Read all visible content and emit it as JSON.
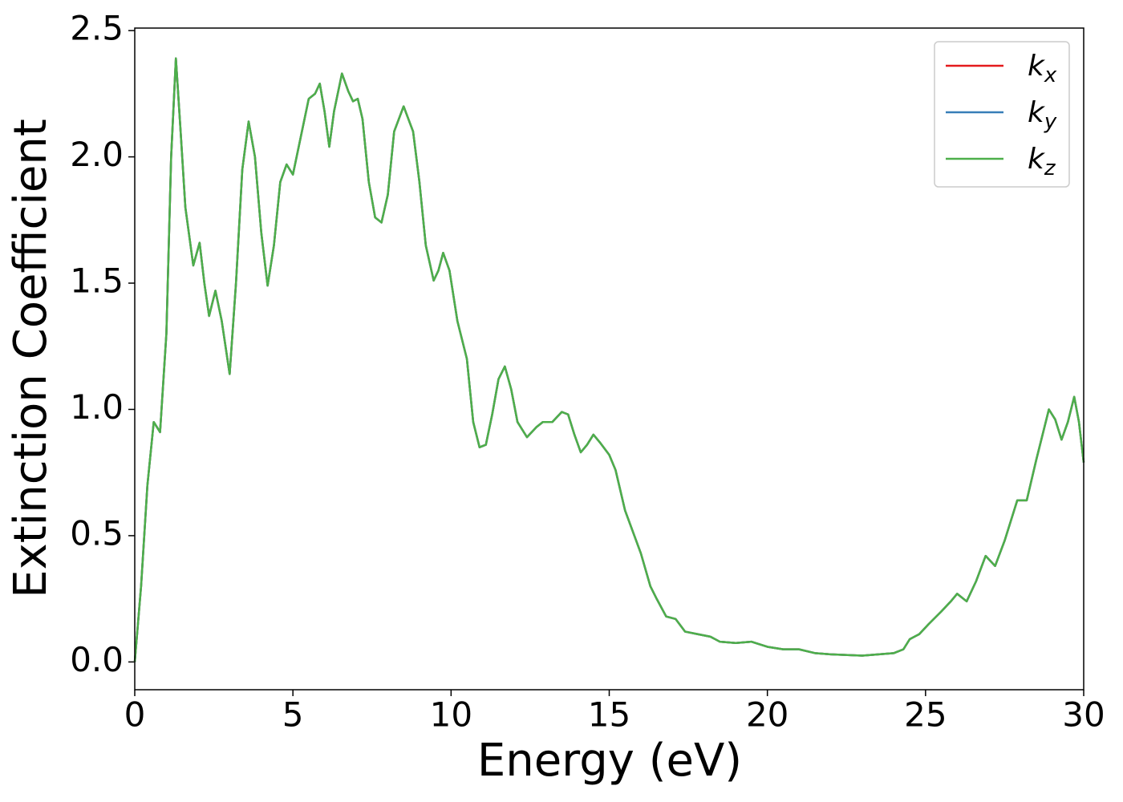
{
  "chart_data": {
    "type": "line",
    "xlabel": "Energy (eV)",
    "ylabel": "Extinction Coefficient",
    "xlim": [
      0,
      30
    ],
    "ylim": [
      -0.11,
      2.51
    ],
    "xticks": [
      0,
      5,
      10,
      15,
      20,
      25,
      30
    ],
    "yticks": [
      {
        "value": 0,
        "label": "0.0"
      },
      0.5,
      {
        "value": 1,
        "label": "1.0"
      },
      1.5,
      {
        "value": 2,
        "label": "2.0"
      },
      2.5
    ],
    "grid": false,
    "legend": "upper right",
    "x": [
      0,
      0.2,
      0.4,
      0.6,
      0.8,
      1.0,
      1.15,
      1.3,
      1.45,
      1.6,
      1.85,
      2.05,
      2.2,
      2.35,
      2.55,
      2.75,
      3.0,
      3.2,
      3.4,
      3.6,
      3.8,
      4.0,
      4.2,
      4.4,
      4.6,
      4.8,
      5.0,
      5.2,
      5.5,
      5.7,
      5.85,
      6.0,
      6.15,
      6.3,
      6.55,
      6.75,
      6.9,
      7.05,
      7.2,
      7.4,
      7.6,
      7.8,
      8.0,
      8.2,
      8.5,
      8.8,
      9.0,
      9.2,
      9.45,
      9.6,
      9.75,
      9.95,
      10.2,
      10.5,
      10.7,
      10.9,
      11.1,
      11.3,
      11.5,
      11.7,
      11.9,
      12.1,
      12.4,
      12.7,
      12.9,
      13.2,
      13.5,
      13.7,
      13.9,
      14.1,
      14.3,
      14.5,
      14.7,
      15.0,
      15.2,
      15.5,
      16.0,
      16.3,
      16.5,
      16.8,
      17.1,
      17.4,
      17.8,
      18.2,
      18.5,
      19.0,
      19.5,
      20.0,
      20.5,
      21.0,
      21.5,
      22.0,
      23.0,
      24.0,
      24.3,
      24.5,
      24.8,
      25.1,
      25.5,
      25.8,
      26.0,
      26.3,
      26.6,
      26.9,
      27.2,
      27.5,
      27.9,
      28.2,
      28.5,
      28.9,
      29.1,
      29.3,
      29.5,
      29.7,
      29.85,
      30.0
    ],
    "series": [
      {
        "name": "kx",
        "color": "#e41a1c",
        "values": [
          0,
          0.3,
          0.7,
          0.95,
          0.91,
          1.3,
          2.0,
          2.39,
          2.1,
          1.8,
          1.57,
          1.66,
          1.5,
          1.37,
          1.47,
          1.35,
          1.14,
          1.5,
          1.95,
          2.14,
          2.0,
          1.7,
          1.49,
          1.65,
          1.9,
          1.97,
          1.93,
          2.05,
          2.23,
          2.25,
          2.29,
          2.18,
          2.04,
          2.18,
          2.33,
          2.26,
          2.22,
          2.23,
          2.15,
          1.9,
          1.76,
          1.74,
          1.85,
          2.1,
          2.2,
          2.1,
          1.9,
          1.65,
          1.51,
          1.55,
          1.62,
          1.55,
          1.35,
          1.2,
          0.95,
          0.85,
          0.86,
          0.98,
          1.12,
          1.17,
          1.08,
          0.95,
          0.89,
          0.93,
          0.95,
          0.95,
          0.99,
          0.98,
          0.9,
          0.83,
          0.86,
          0.9,
          0.87,
          0.82,
          0.76,
          0.6,
          0.43,
          0.3,
          0.25,
          0.18,
          0.17,
          0.12,
          0.11,
          0.1,
          0.08,
          0.075,
          0.08,
          0.06,
          0.05,
          0.05,
          0.035,
          0.03,
          0.025,
          0.035,
          0.05,
          0.09,
          0.11,
          0.15,
          0.2,
          0.24,
          0.27,
          0.24,
          0.32,
          0.42,
          0.38,
          0.48,
          0.64,
          0.64,
          0.8,
          1.0,
          0.96,
          0.88,
          0.95,
          1.05,
          0.95,
          0.79
        ]
      },
      {
        "name": "ky",
        "color": "#377eb8",
        "values": [
          0,
          0.3,
          0.7,
          0.95,
          0.91,
          1.3,
          2.0,
          2.39,
          2.1,
          1.8,
          1.57,
          1.66,
          1.5,
          1.37,
          1.47,
          1.35,
          1.14,
          1.5,
          1.95,
          2.14,
          2.0,
          1.7,
          1.49,
          1.65,
          1.9,
          1.97,
          1.93,
          2.05,
          2.23,
          2.25,
          2.29,
          2.18,
          2.04,
          2.18,
          2.33,
          2.26,
          2.22,
          2.23,
          2.15,
          1.9,
          1.76,
          1.74,
          1.85,
          2.1,
          2.2,
          2.1,
          1.9,
          1.65,
          1.51,
          1.55,
          1.62,
          1.55,
          1.35,
          1.2,
          0.95,
          0.85,
          0.86,
          0.98,
          1.12,
          1.17,
          1.08,
          0.95,
          0.89,
          0.93,
          0.95,
          0.95,
          0.99,
          0.98,
          0.9,
          0.83,
          0.86,
          0.9,
          0.87,
          0.82,
          0.76,
          0.6,
          0.43,
          0.3,
          0.25,
          0.18,
          0.17,
          0.12,
          0.11,
          0.1,
          0.08,
          0.075,
          0.08,
          0.06,
          0.05,
          0.05,
          0.035,
          0.03,
          0.025,
          0.035,
          0.05,
          0.09,
          0.11,
          0.15,
          0.2,
          0.24,
          0.27,
          0.24,
          0.32,
          0.42,
          0.38,
          0.48,
          0.64,
          0.64,
          0.8,
          1.0,
          0.96,
          0.88,
          0.95,
          1.05,
          0.95,
          0.79
        ]
      },
      {
        "name": "kz",
        "color": "#4daf4a",
        "values": [
          0,
          0.3,
          0.7,
          0.95,
          0.91,
          1.3,
          2.0,
          2.39,
          2.1,
          1.8,
          1.57,
          1.66,
          1.5,
          1.37,
          1.47,
          1.35,
          1.14,
          1.5,
          1.95,
          2.14,
          2.0,
          1.7,
          1.49,
          1.65,
          1.9,
          1.97,
          1.93,
          2.05,
          2.23,
          2.25,
          2.29,
          2.18,
          2.04,
          2.18,
          2.33,
          2.26,
          2.22,
          2.23,
          2.15,
          1.9,
          1.76,
          1.74,
          1.85,
          2.1,
          2.2,
          2.1,
          1.9,
          1.65,
          1.51,
          1.55,
          1.62,
          1.55,
          1.35,
          1.2,
          0.95,
          0.85,
          0.86,
          0.98,
          1.12,
          1.17,
          1.08,
          0.95,
          0.89,
          0.93,
          0.95,
          0.95,
          0.99,
          0.98,
          0.9,
          0.83,
          0.86,
          0.9,
          0.87,
          0.82,
          0.76,
          0.6,
          0.43,
          0.3,
          0.25,
          0.18,
          0.17,
          0.12,
          0.11,
          0.1,
          0.08,
          0.075,
          0.08,
          0.06,
          0.05,
          0.05,
          0.035,
          0.03,
          0.025,
          0.035,
          0.05,
          0.09,
          0.11,
          0.15,
          0.2,
          0.24,
          0.27,
          0.24,
          0.32,
          0.42,
          0.38,
          0.48,
          0.64,
          0.64,
          0.8,
          1.0,
          0.96,
          0.88,
          0.95,
          1.05,
          0.95,
          0.79
        ]
      }
    ]
  }
}
